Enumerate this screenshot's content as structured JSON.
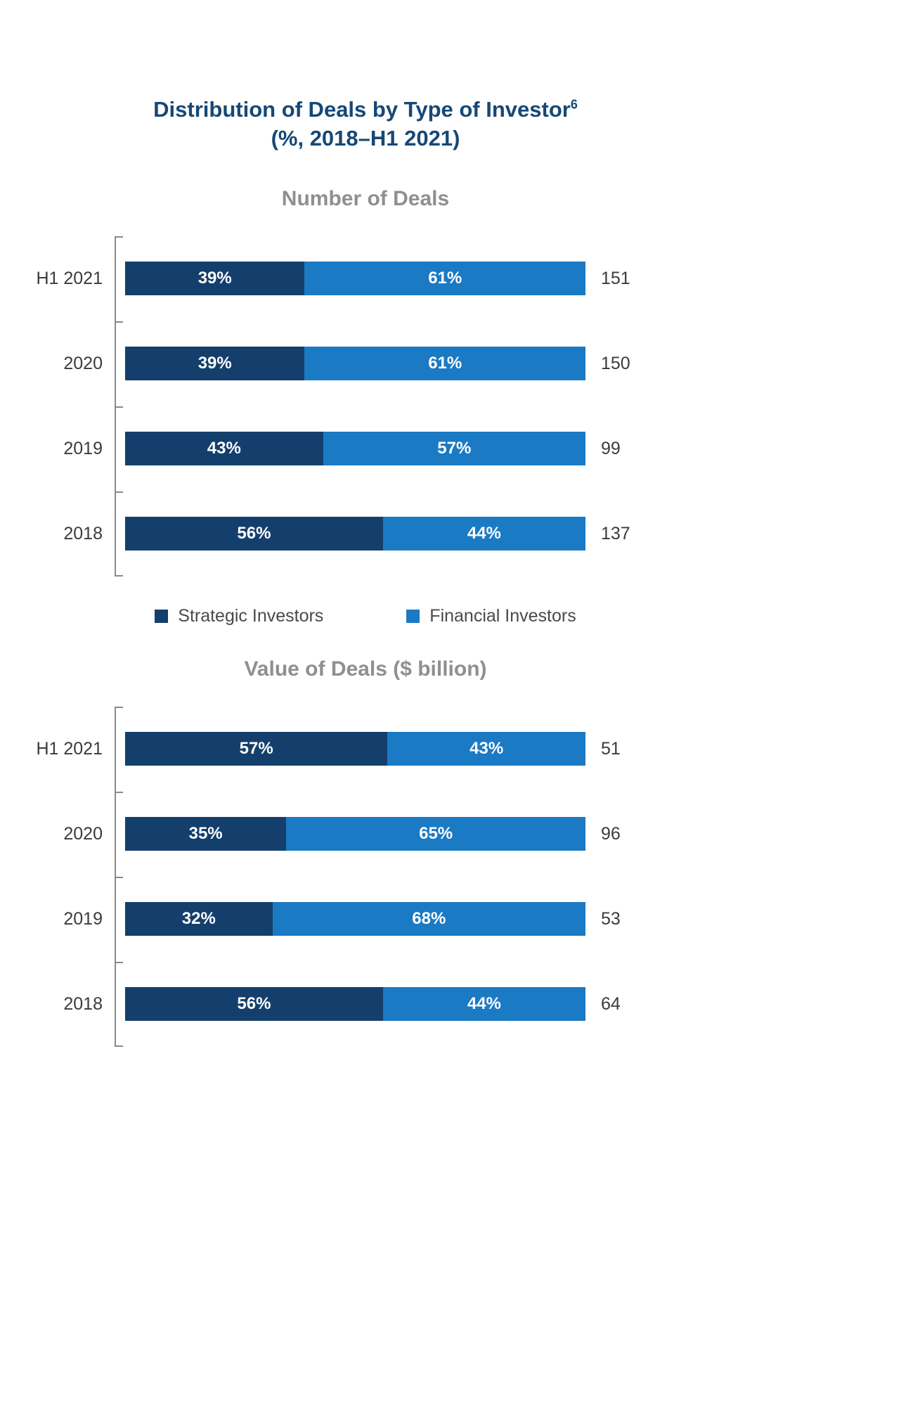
{
  "page": {
    "title": "Distribution of Deals by Type of Investor",
    "title_sup": "6",
    "subtitle": "(%, 2018–H1 2021)"
  },
  "colors": {
    "strategic": "#143F6C",
    "financial": "#1B7AC4",
    "title": "#164876",
    "section_title": "#8f8f8f",
    "axis": "#8a8a8a"
  },
  "legend": {
    "items": [
      {
        "label": "Strategic Investors",
        "color_key": "strategic"
      },
      {
        "label": "Financial Investors",
        "color_key": "financial"
      }
    ]
  },
  "chart_data": [
    {
      "type": "bar",
      "orientation": "horizontal",
      "stacked": true,
      "title": "Number of Deals",
      "categories": [
        "H1 2021",
        "2020",
        "2019",
        "2018"
      ],
      "series": [
        {
          "name": "Strategic Investors",
          "values": [
            39,
            39,
            43,
            56
          ],
          "unit": "%"
        },
        {
          "name": "Financial Investors",
          "values": [
            61,
            61,
            57,
            44
          ],
          "unit": "%"
        }
      ],
      "totals": [
        151,
        150,
        99,
        137
      ],
      "xlim": [
        0,
        100
      ],
      "grid": false,
      "legend_position": "bottom"
    },
    {
      "type": "bar",
      "orientation": "horizontal",
      "stacked": true,
      "title": "Value of Deals ($ billion)",
      "categories": [
        "H1 2021",
        "2020",
        "2019",
        "2018"
      ],
      "series": [
        {
          "name": "Strategic Investors",
          "values": [
            57,
            35,
            32,
            56
          ],
          "unit": "%"
        },
        {
          "name": "Financial Investors",
          "values": [
            43,
            65,
            68,
            44
          ],
          "unit": "%"
        }
      ],
      "totals": [
        51,
        96,
        53,
        64
      ],
      "xlim": [
        0,
        100
      ],
      "grid": false,
      "legend_position": "none"
    }
  ]
}
